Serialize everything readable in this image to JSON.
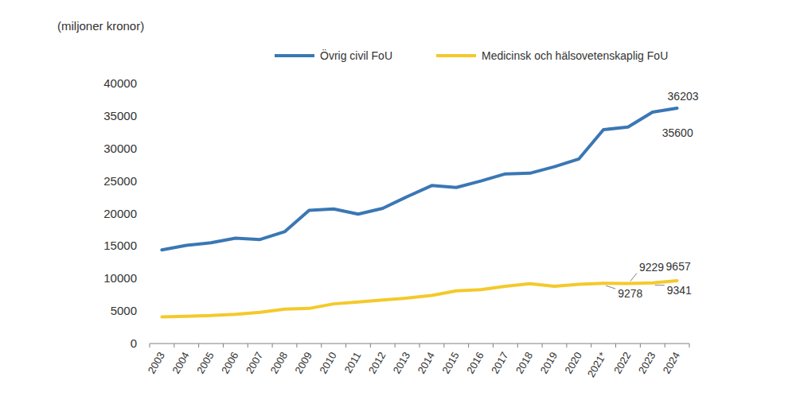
{
  "chart_data": {
    "type": "line",
    "y_label": "(miljoner kronor)",
    "categories": [
      "2003",
      "2004",
      "2005",
      "2006",
      "2007",
      "2008",
      "2009",
      "2010",
      "2011",
      "2012",
      "2013",
      "2014",
      "2015",
      "2016",
      "2017",
      "2018",
      "2019",
      "2020",
      "2021*",
      "2022",
      "2023",
      "2024"
    ],
    "series": [
      {
        "name": "Övrig civil FoU",
        "color": "#3a77b5",
        "values": [
          14400,
          15100,
          15500,
          16200,
          16000,
          17200,
          20500,
          20700,
          19900,
          20800,
          22600,
          24300,
          24000,
          25000,
          26100,
          26200,
          27200,
          28400,
          32900,
          33300,
          35600,
          36203
        ],
        "value_labels": [
          null,
          null,
          null,
          null,
          null,
          null,
          null,
          null,
          null,
          null,
          null,
          null,
          null,
          null,
          null,
          null,
          null,
          null,
          null,
          null,
          "35600",
          "36203"
        ]
      },
      {
        "name": "Medicinsk och hälsovetenskaplig FoU",
        "color": "#f4c92a",
        "values": [
          4100,
          4200,
          4300,
          4500,
          4800,
          5300,
          5400,
          6100,
          6400,
          6700,
          7000,
          7400,
          8100,
          8300,
          8800,
          9200,
          8800,
          9100,
          9278,
          9229,
          9341,
          9657
        ],
        "value_labels": [
          null,
          null,
          null,
          null,
          null,
          null,
          null,
          null,
          null,
          null,
          null,
          null,
          null,
          null,
          null,
          null,
          null,
          null,
          "9278",
          "9229",
          "9341",
          "9657"
        ]
      }
    ],
    "ylim": [
      0,
      40000
    ],
    "yticks": [
      0,
      5000,
      10000,
      15000,
      20000,
      25000,
      30000,
      35000,
      40000
    ],
    "grid": false,
    "legend": "top"
  }
}
